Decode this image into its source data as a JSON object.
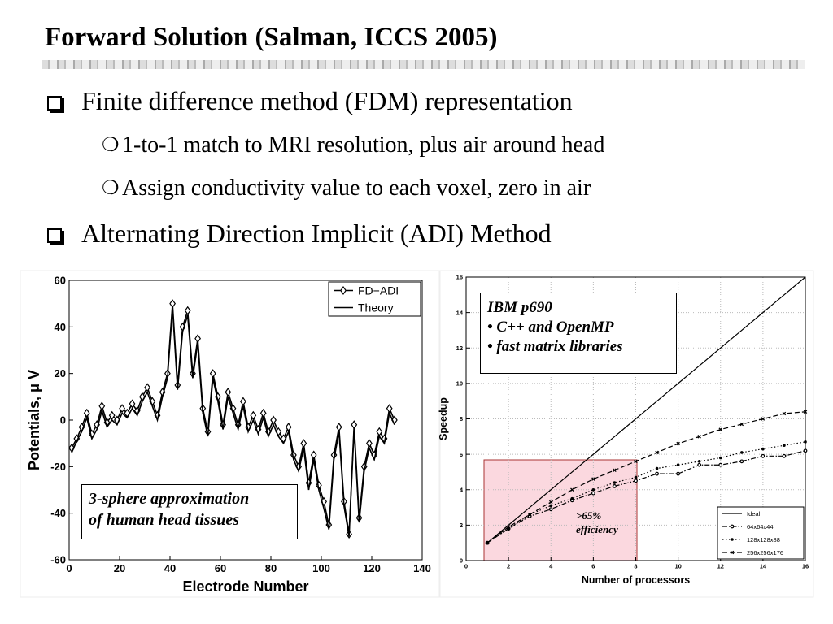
{
  "header": {
    "title": "Forward Solution (Salman, ICCS 2005)"
  },
  "bullets": [
    {
      "text": "Finite difference method (FDM) representation",
      "sub": [
        "1-to-1 match to MRI resolution, plus air around head",
        "Assign conductivity value to each voxel, zero in air"
      ]
    },
    {
      "text": "Alternating Direction Implicit (ADI) Method",
      "sub": []
    }
  ],
  "chart_data": [
    {
      "type": "line",
      "xlabel": "Electrode Number",
      "ylabel": "Potentials, μ V",
      "x": [
        1,
        3,
        5,
        7,
        9,
        11,
        13,
        15,
        17,
        19,
        21,
        23,
        25,
        27,
        29,
        31,
        33,
        35,
        37,
        39,
        41,
        43,
        45,
        47,
        49,
        51,
        53,
        55,
        57,
        59,
        61,
        63,
        65,
        67,
        69,
        71,
        73,
        75,
        77,
        79,
        81,
        83,
        85,
        87,
        89,
        91,
        93,
        95,
        97,
        99,
        101,
        103,
        105,
        107,
        109,
        111,
        113,
        115,
        117,
        119,
        121,
        123,
        125,
        127,
        129
      ],
      "series": [
        {
          "name": "FD−ADI",
          "color": "#000000",
          "marker": "diamond",
          "dash": "solid",
          "values": [
            -12,
            -8,
            -3,
            3,
            -6,
            -2,
            6,
            -1,
            2,
            0,
            5,
            3,
            7,
            4,
            10,
            14,
            8,
            2,
            12,
            20,
            50,
            15,
            40,
            47,
            20,
            35,
            5,
            -5,
            20,
            10,
            -2,
            12,
            5,
            -2,
            8,
            -3,
            2,
            -4,
            3,
            -5,
            0,
            -5,
            -8,
            -3,
            -15,
            -20,
            -10,
            -27,
            -15,
            -28,
            -35,
            -45,
            -15,
            -3,
            -35,
            -49,
            -2,
            -42,
            -20,
            -10,
            -15,
            -5,
            -8,
            5,
            0
          ]
        },
        {
          "name": "Theory",
          "color": "#000000",
          "marker": "none",
          "dash": "solid",
          "values": [
            -14,
            -9,
            -5,
            1,
            -8,
            -4,
            4,
            -3,
            0,
            -2,
            3,
            1,
            5,
            2,
            8,
            12,
            6,
            0,
            10,
            18,
            48,
            13,
            38,
            45,
            18,
            33,
            3,
            -7,
            18,
            8,
            -4,
            10,
            3,
            -4,
            6,
            -5,
            0,
            -6,
            1,
            -7,
            -2,
            -7,
            -10,
            -5,
            -17,
            -22,
            -12,
            -30,
            -17,
            -30,
            -38,
            -47,
            -17,
            -5,
            -37,
            -50,
            -4,
            -44,
            -22,
            -12,
            -17,
            -7,
            -10,
            3,
            -2
          ]
        }
      ],
      "xlim": [
        0,
        140
      ],
      "xticks": [
        0,
        20,
        40,
        60,
        80,
        100,
        120,
        140
      ],
      "ylim": [
        -60,
        60
      ],
      "yticks": [
        -60,
        -40,
        -20,
        0,
        20,
        40,
        60
      ],
      "grid": false,
      "legend": "upper right",
      "annotations": [
        "3-sphere approximation",
        "of human head tissues"
      ]
    },
    {
      "type": "line",
      "xlabel": "Number of processors",
      "ylabel": "Speedup",
      "x": [
        1,
        2,
        3,
        4,
        5,
        6,
        7,
        8,
        9,
        10,
        11,
        12,
        13,
        14,
        15,
        16
      ],
      "series": [
        {
          "name": "Ideal",
          "color": "#000000",
          "marker": "none",
          "dash": "solid",
          "values": [
            1,
            2,
            3,
            4,
            5,
            6,
            7,
            8,
            9,
            10,
            11,
            12,
            13,
            14,
            15,
            16
          ]
        },
        {
          "name": "64x64x44",
          "color": "#000000",
          "marker": "circle-open",
          "dash": "dashdot",
          "values": [
            1,
            1.8,
            2.5,
            2.9,
            3.4,
            3.8,
            4.2,
            4.5,
            4.9,
            4.9,
            5.4,
            5.4,
            5.6,
            5.9,
            5.9,
            6.2
          ]
        },
        {
          "name": "128x128x88",
          "color": "#000000",
          "marker": "circle-filled",
          "dash": "dotted",
          "values": [
            1,
            1.8,
            2.6,
            3.1,
            3.5,
            4.0,
            4.4,
            4.7,
            5.2,
            5.4,
            5.6,
            5.8,
            6.1,
            6.3,
            6.5,
            6.7
          ]
        },
        {
          "name": "256x256x176",
          "color": "#000000",
          "marker": "x",
          "dash": "dashed",
          "values": [
            1,
            1.9,
            2.6,
            3.3,
            4.0,
            4.6,
            5.1,
            5.6,
            6.1,
            6.6,
            7.0,
            7.4,
            7.7,
            8.0,
            8.3,
            8.4
          ]
        }
      ],
      "xlim": [
        0,
        16
      ],
      "xticks": [
        0,
        2,
        4,
        6,
        8,
        10,
        12,
        14,
        16
      ],
      "ylim": [
        0,
        16
      ],
      "yticks": [
        0,
        2,
        4,
        6,
        8,
        10,
        12,
        14,
        16
      ],
      "grid": true,
      "legend": "lower right",
      "annotations": [
        "IBM p690",
        "• C++  and OpenMP",
        "• fast matrix libraries",
        ">65%",
        "efficiency"
      ]
    }
  ]
}
